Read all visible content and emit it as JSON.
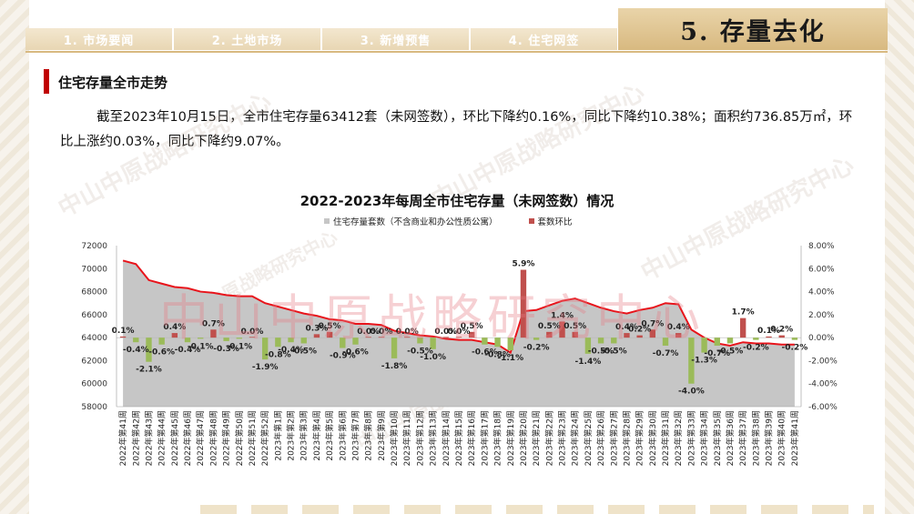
{
  "tabs": [
    "1. 市场要闻",
    "2. 土地市场",
    "3. 新增预售",
    "4. 住宅网签"
  ],
  "active_tab": "5. 存量去化",
  "section_title": "住宅存量全市走势",
  "summary": "截至2023年10月15日，全市住宅存量63412套（未网签数），环比下降约0.16%，同比下降约10.38%；面积约736.85万㎡，环比上涨约0.03%，同比下降约9.07%。",
  "watermark": "中山中原战略研究中心",
  "colors": {
    "area": "#c6c6c6",
    "line": "#e8141b",
    "bar_up": "#c0504d",
    "bar_down": "#9bbb59",
    "accent": "#c00000"
  },
  "chart_data": {
    "type": "bar",
    "title": "2022-2023年每周全市住宅存量（未网签数）情况",
    "legend": [
      "住宅存量套数（不含商业和办公性质公寓）",
      "套数环比"
    ],
    "legend_placement": "top",
    "grid": false,
    "y_left": {
      "min": 58000,
      "max": 72000,
      "step": 2000,
      "ticks": [
        "58000",
        "60000",
        "62000",
        "64000",
        "66000",
        "68000",
        "70000",
        "72000"
      ]
    },
    "y_right": {
      "min": -6,
      "max": 8,
      "step": 2,
      "ticks": [
        "-6.00%",
        "-4.00%",
        "-2.00%",
        "0.00%",
        "2.00%",
        "4.00%",
        "6.00%",
        "8.00%"
      ]
    },
    "categories": [
      "2022年第41周",
      "2022年第42周",
      "2022年第43周",
      "2022年第44周",
      "2022年第45周",
      "2022年第46周",
      "2022年第47周",
      "2022年第48周",
      "2022年第49周",
      "2022年第50周",
      "2022年第51周",
      "2022年第52周",
      "2023年第1周",
      "2023年第2周",
      "2023年第3周",
      "2023年第4周",
      "2023年第5周",
      "2023年第6周",
      "2023年第7周",
      "2023年第8周",
      "2023年第9周",
      "2023年第10周",
      "2023年第11周",
      "2023年第12周",
      "2023年第13周",
      "2023年第14周",
      "2023年第15周",
      "2023年第16周",
      "2023年第17周",
      "2023年第18周",
      "2023年第19周",
      "2023年第20周",
      "2023年第21周",
      "2023年第22周",
      "2023年第23周",
      "2023年第24周",
      "2023年第25周",
      "2023年第26周",
      "2023年第27周",
      "2023年第28周",
      "2023年第29周",
      "2023年第30周",
      "2023年第31周",
      "2023年第32周",
      "2023年第33周",
      "2023年第34周",
      "2023年第35周",
      "2023年第36周",
      "2023年第37周",
      "2023年第38周",
      "2023年第39周",
      "2023年第40周",
      "2023年第41周"
    ],
    "series": [
      {
        "name": "住宅存量套数（不含商业和办公性质公寓）",
        "type": "area",
        "values": [
          70700,
          70400,
          69000,
          68700,
          68400,
          68300,
          68000,
          67900,
          67700,
          67600,
          67600,
          67000,
          66700,
          66400,
          66100,
          65900,
          65600,
          65500,
          65200,
          65200,
          65100,
          64600,
          64400,
          64200,
          64100,
          63900,
          63800,
          63800,
          63600,
          63400,
          62700,
          66300,
          66400,
          66800,
          67200,
          67400,
          67000,
          66600,
          66300,
          66100,
          66400,
          66600,
          67000,
          66900,
          64700,
          64000,
          63500,
          63300,
          63600,
          63500,
          63500,
          63400,
          63400
        ]
      },
      {
        "name": "套数环比",
        "type": "bar",
        "values": [
          0.1,
          -0.4,
          -2.1,
          -0.6,
          0.4,
          -0.4,
          -0.1,
          0.7,
          -0.3,
          -0.1,
          0.0,
          -1.9,
          -0.8,
          -0.4,
          -0.5,
          0.3,
          0.5,
          -0.9,
          -0.6,
          0.0,
          0.0,
          -1.8,
          0.0,
          -0.5,
          -1.0,
          0.0,
          0.0,
          0.5,
          -0.6,
          -0.8,
          -1.1,
          5.9,
          -0.2,
          0.5,
          1.4,
          0.5,
          -1.4,
          -0.5,
          -0.5,
          0.4,
          0.2,
          0.7,
          -0.7,
          0.4,
          -4.0,
          -1.3,
          -0.7,
          -0.5,
          1.7,
          -0.2,
          0.1,
          0.2,
          -0.2
        ],
        "labels": [
          "0.1%",
          "-0.4%",
          "-2.1%",
          "-0.6%",
          "0.4%",
          "-0.4%",
          "-0.1%",
          "0.7%",
          "-0.3%",
          "-0.1%",
          "0.0%",
          "-1.9%",
          "-0.8%",
          "-0.4%",
          "-0.5%",
          "0.3%",
          "0.5%",
          "-0.9%",
          "-0.6%",
          "0.0%",
          "0.0%",
          "-1.8%",
          "0.0%",
          "-0.5%",
          "-1.0%",
          "0.0%",
          "0.0%",
          "0.5%",
          "-0.6%",
          "-0.8%",
          "-1.1%",
          "5.9%",
          "-0.2%",
          "0.5%",
          "1.4%",
          "0.5%",
          "-1.4%",
          "-0.5%",
          "-0.5%",
          "0.4%",
          "0.2%",
          "0.7%",
          "-0.7%",
          "0.4%",
          "-4.0%",
          "-1.3%",
          "-0.7%",
          "-0.5%",
          "1.7%",
          "-0.2%",
          "0.1%",
          "0.2%",
          "-0.2%"
        ]
      }
    ]
  }
}
